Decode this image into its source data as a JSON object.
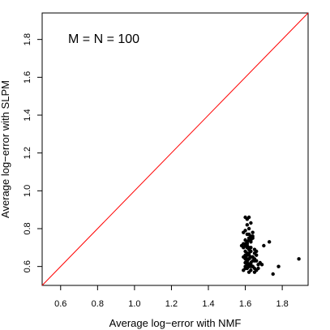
{
  "chart_data": {
    "type": "scatter",
    "xlabel": "Average log−error with NMF",
    "ylabel": "Average log−error with SLPM",
    "annotation": "M = N = 100",
    "xlim": [
      0.5,
      1.94
    ],
    "ylim": [
      0.5,
      1.94
    ],
    "x_ticks": [
      0.6,
      0.8,
      1.0,
      1.2,
      1.4,
      1.6,
      1.8
    ],
    "x_tick_labels": [
      "0.6",
      "0.8",
      "1.0",
      "1.2",
      "1.4",
      "1.6",
      "1.8"
    ],
    "y_ticks": [
      0.6,
      0.8,
      1.0,
      1.2,
      1.4,
      1.6,
      1.8
    ],
    "y_tick_labels": [
      "0.6",
      "0.8",
      "1.0",
      "1.2",
      "1.4",
      "1.6",
      "1.8"
    ],
    "reference_line": {
      "slope": 1,
      "intercept": 0,
      "color": "#ff0000"
    },
    "point_color": "#000000",
    "grid": false,
    "x": [
      1.6,
      1.61,
      1.62,
      1.62,
      1.6,
      1.59,
      1.61,
      1.63,
      1.64,
      1.63,
      1.61,
      1.6,
      1.58,
      1.59,
      1.62,
      1.65,
      1.66,
      1.62,
      1.61,
      1.6,
      1.59,
      1.63,
      1.62,
      1.61,
      1.64,
      1.65,
      1.6,
      1.61,
      1.62,
      1.63,
      1.64,
      1.62,
      1.6,
      1.61,
      1.63,
      1.59,
      1.62,
      1.61,
      1.6,
      1.64,
      1.66,
      1.65,
      1.63,
      1.62,
      1.61,
      1.6,
      1.59,
      1.61,
      1.62,
      1.63,
      1.64,
      1.62,
      1.6,
      1.61,
      1.63,
      1.65,
      1.67,
      1.68,
      1.66,
      1.65,
      1.64,
      1.62,
      1.61,
      1.6,
      1.62,
      1.63,
      1.61,
      1.6,
      1.62,
      1.64,
      1.63,
      1.61,
      1.6,
      1.62,
      1.63,
      1.61,
      1.62,
      1.6,
      1.64,
      1.7,
      1.73,
      1.78,
      1.75,
      1.89,
      1.69,
      1.66,
      1.67,
      1.65,
      1.61,
      1.63
    ],
    "y": [
      0.86,
      0.85,
      0.86,
      0.8,
      0.79,
      0.78,
      0.77,
      0.76,
      0.75,
      0.74,
      0.73,
      0.72,
      0.71,
      0.7,
      0.7,
      0.69,
      0.68,
      0.67,
      0.66,
      0.66,
      0.65,
      0.65,
      0.64,
      0.64,
      0.63,
      0.63,
      0.62,
      0.62,
      0.61,
      0.61,
      0.6,
      0.6,
      0.59,
      0.59,
      0.58,
      0.58,
      0.57,
      0.63,
      0.64,
      0.65,
      0.66,
      0.67,
      0.68,
      0.69,
      0.7,
      0.71,
      0.72,
      0.73,
      0.74,
      0.75,
      0.76,
      0.77,
      0.62,
      0.61,
      0.6,
      0.59,
      0.61,
      0.62,
      0.63,
      0.64,
      0.65,
      0.66,
      0.67,
      0.68,
      0.69,
      0.7,
      0.71,
      0.74,
      0.75,
      0.78,
      0.73,
      0.72,
      0.6,
      0.61,
      0.62,
      0.63,
      0.64,
      0.65,
      0.6,
      0.71,
      0.73,
      0.6,
      0.56,
      0.64,
      0.61,
      0.58,
      0.59,
      0.57,
      0.82,
      0.83
    ]
  }
}
